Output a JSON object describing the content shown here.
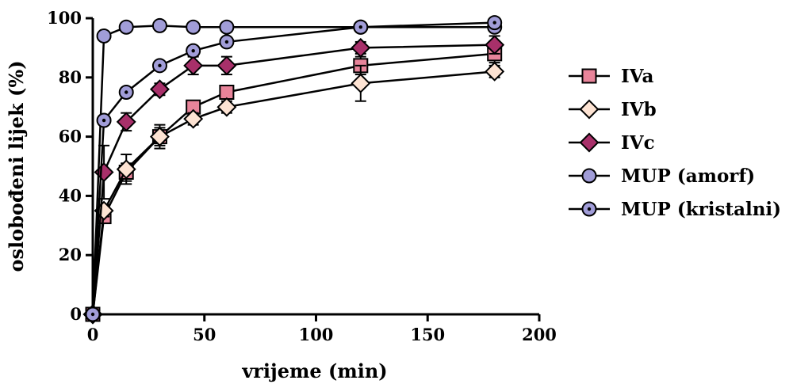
{
  "chart_data": {
    "type": "line",
    "title": "",
    "xlabel": "vrijeme (min)",
    "ylabel": "oslobođeni lijek (%)",
    "xlim": [
      0,
      200
    ],
    "ylim": [
      0,
      100
    ],
    "xticks": [
      0,
      50,
      100,
      150,
      200
    ],
    "yticks": [
      0,
      20,
      40,
      60,
      80,
      100
    ],
    "xtick_labels": [
      "0",
      "50",
      "100",
      "150",
      "200"
    ],
    "ytick_labels": [
      "0",
      "20",
      "40",
      "60",
      "80",
      "100"
    ],
    "grid": false,
    "legend_position": "right",
    "x": [
      0,
      5,
      15,
      30,
      45,
      60,
      120,
      180
    ],
    "series": [
      {
        "name": "IVa",
        "marker": "square",
        "color": "#e8849a",
        "values": [
          0,
          33,
          48,
          60,
          70,
          75,
          84,
          88
        ],
        "errors": [
          0,
          2,
          3,
          3,
          2,
          2,
          3,
          3
        ]
      },
      {
        "name": "IVb",
        "marker": "diamond",
        "color": "#fde3d3",
        "values": [
          0,
          35,
          49,
          60,
          66,
          70,
          78,
          82
        ],
        "errors": [
          0,
          2,
          5,
          4,
          2,
          2,
          6,
          2
        ]
      },
      {
        "name": "IVc",
        "marker": "diamond",
        "color": "#a8306a",
        "values": [
          0,
          48,
          65,
          76,
          84,
          84,
          90,
          91
        ],
        "errors": [
          0,
          9,
          3,
          2,
          3,
          3,
          2,
          3
        ]
      },
      {
        "name": "MUP (amorf)",
        "marker": "circle",
        "color": "#a19dd8",
        "values": [
          0,
          94,
          97,
          97.5,
          97,
          97,
          97,
          97
        ],
        "errors": [
          0,
          1,
          1,
          0.5,
          0.5,
          0.5,
          0.5,
          1
        ]
      },
      {
        "name": "MUP (kristalni)",
        "marker": "circle-dot",
        "color": "#a19dd8",
        "values": [
          0,
          65.5,
          75,
          84,
          89,
          92,
          97,
          98.5
        ],
        "errors": [
          0,
          1,
          1,
          1,
          1,
          1,
          1,
          1
        ]
      }
    ]
  }
}
